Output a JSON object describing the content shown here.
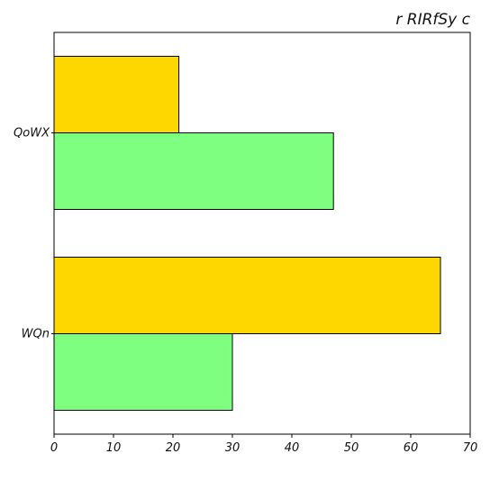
{
  "chart_data": {
    "type": "bar",
    "orientation": "horizontal",
    "title": "r RIRfSy c",
    "xlabel": "",
    "ylabel": "",
    "categories": [
      "QoWX",
      "WQn"
    ],
    "series": [
      {
        "values": [
          21,
          65
        ],
        "color": "#FFD700"
      },
      {
        "values": [
          47,
          30
        ],
        "color": "#7FFF7F"
      }
    ],
    "xlim": [
      0,
      70
    ],
    "xticks": [
      0,
      10,
      20,
      30,
      40,
      50,
      60,
      70
    ],
    "grid": false,
    "legend": "none"
  }
}
